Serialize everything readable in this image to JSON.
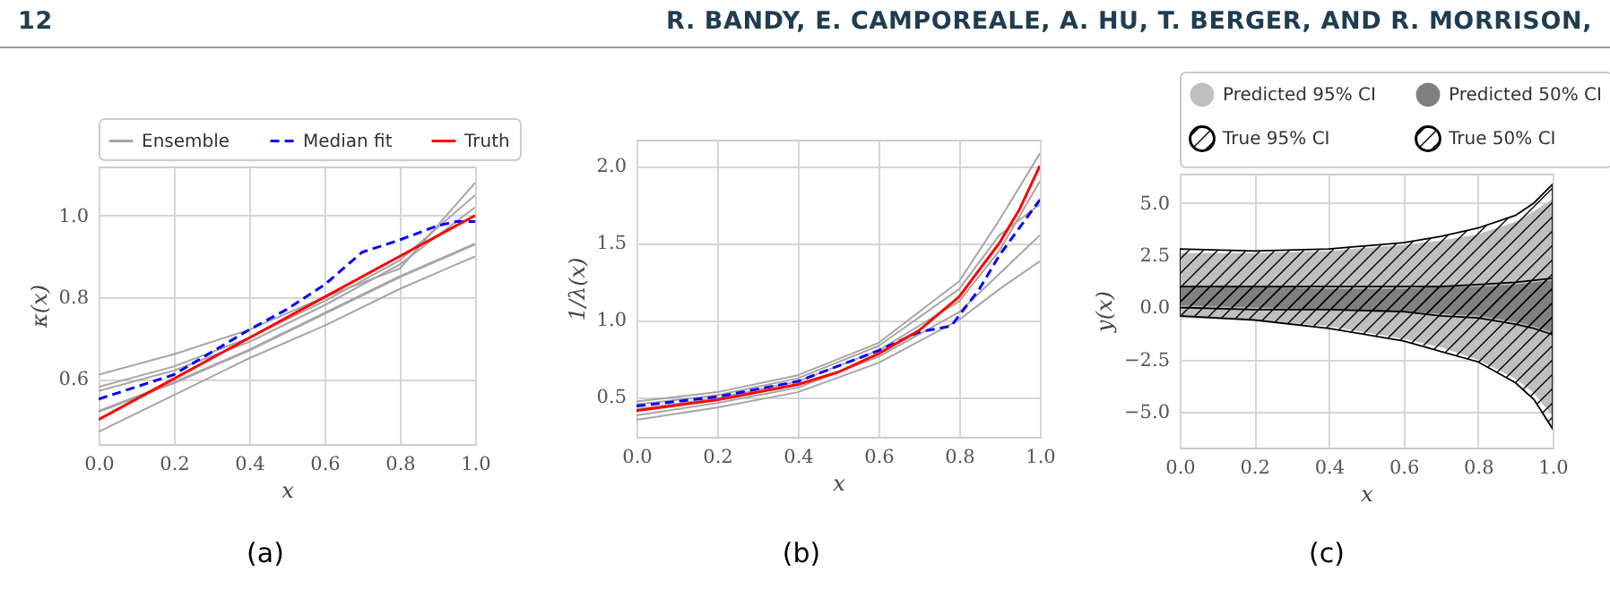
{
  "chart_data": [
    {
      "type": "line",
      "xlabel": "x",
      "ylabel": "κ(x)",
      "annotations": [
        "12",
        "R. BANDY, E. CAMPOREALE, A. HU, T. BERGER, AND R. MORRISON,",
        "(a)"
      ],
      "x": [
        0,
        0.2,
        0.4,
        0.6,
        0.8,
        1.0
      ],
      "series": [
        {
          "color": "#a6a6a6",
          "values": [
            0.61,
            0.66,
            0.72,
            0.8,
            0.87,
            1.08
          ]
        },
        {
          "color": "#a6a6a6",
          "values": [
            0.47,
            0.56,
            0.65,
            0.73,
            0.82,
            0.9
          ]
        },
        {
          "color": "#a6a6a6",
          "values": [
            0.58,
            0.63,
            0.7,
            0.79,
            0.89,
            1.05
          ]
        },
        {
          "color": "#a6a6a6",
          "values": [
            0.57,
            0.62,
            0.69,
            0.78,
            0.88,
            1.02
          ]
        },
        {
          "name": "Ensemble",
          "color": "#a6a6a6",
          "values": [
            0.52,
            0.59,
            0.67,
            0.76,
            0.85,
            0.93
          ]
        },
        {
          "name": "Median fit",
          "color": "#0000ff",
          "line_style": "dashed",
          "x": [
            0,
            0.2,
            0.4,
            0.5,
            0.6,
            0.65,
            0.7,
            0.8,
            0.9,
            0.95,
            1.0
          ],
          "values": [
            0.55,
            0.61,
            0.72,
            0.77,
            0.83,
            0.87,
            0.91,
            0.94,
            0.975,
            0.985,
            0.985
          ]
        },
        {
          "name": "Truth",
          "color": "#ff0000",
          "line_style": "solid",
          "values": [
            0.5,
            0.6,
            0.7,
            0.8,
            0.9,
            1.0
          ]
        }
      ],
      "xlim": [
        0,
        1
      ],
      "xticks": [
        {
          "value": 0,
          "label": "0.0"
        },
        {
          "value": 0.2,
          "label": "0.2"
        },
        {
          "value": 0.4,
          "label": "0.4"
        },
        {
          "value": 0.6,
          "label": "0.6"
        },
        {
          "value": 0.8,
          "label": "0.8"
        },
        {
          "value": 1,
          "label": "1.0"
        }
      ],
      "ylim": [
        0.44,
        1.12
      ],
      "yticks": [
        {
          "value": 0.6,
          "label": "0.6"
        },
        {
          "value": 0.8,
          "label": "0.8"
        },
        {
          "value": 1,
          "label": "1.0"
        }
      ],
      "grid": true,
      "legend": "top"
    },
    {
      "type": "line",
      "xlabel": "x",
      "ylabel": "1/λ(x)",
      "annotations": [
        "(b)"
      ],
      "x": [
        0,
        0.2,
        0.4,
        0.6,
        0.8,
        0.9,
        1.0
      ],
      "series": [
        {
          "color": "#a6a6a6",
          "values": [
            0.47,
            0.53,
            0.64,
            0.85,
            1.25,
            1.65,
            2.08
          ]
        },
        {
          "color": "#a6a6a6",
          "values": [
            0.35,
            0.43,
            0.53,
            0.72,
            1.0,
            1.2,
            1.38
          ]
        },
        {
          "color": "#a6a6a6",
          "values": [
            0.42,
            0.49,
            0.6,
            0.8,
            1.12,
            1.45,
            1.9
          ]
        },
        {
          "color": "#a6a6a6",
          "values": [
            0.38,
            0.46,
            0.56,
            0.76,
            1.05,
            1.3,
            1.55
          ]
        },
        {
          "color": "#a6a6a6",
          "values": [
            0.45,
            0.51,
            0.62,
            0.83,
            1.2,
            1.55,
            1.75
          ]
        },
        {
          "color": "#0000ff",
          "line_style": "dashed",
          "x": [
            0,
            0.2,
            0.4,
            0.6,
            0.7,
            0.78,
            0.85,
            0.9,
            0.95,
            1.0
          ],
          "values": [
            0.44,
            0.5,
            0.6,
            0.8,
            0.92,
            0.96,
            1.2,
            1.42,
            1.6,
            1.78
          ]
        },
        {
          "color": "#ff0000",
          "line_style": "solid",
          "x": [
            0,
            0.2,
            0.4,
            0.5,
            0.6,
            0.7,
            0.8,
            0.9,
            0.95,
            1.0
          ],
          "values": [
            0.41,
            0.48,
            0.58,
            0.66,
            0.78,
            0.93,
            1.15,
            1.5,
            1.72,
            2.0
          ]
        }
      ],
      "xlim": [
        0,
        1
      ],
      "xticks": [
        {
          "value": 0,
          "label": "0.0"
        },
        {
          "value": 0.2,
          "label": "0.2"
        },
        {
          "value": 0.4,
          "label": "0.4"
        },
        {
          "value": 0.6,
          "label": "0.6"
        },
        {
          "value": 0.8,
          "label": "0.8"
        },
        {
          "value": 1,
          "label": "1.0"
        }
      ],
      "ylim": [
        0.24,
        2.17
      ],
      "yticks": [
        {
          "value": 0.5,
          "label": "0.5"
        },
        {
          "value": 1,
          "label": "1.0"
        },
        {
          "value": 1.5,
          "label": "1.5"
        },
        {
          "value": 2,
          "label": "2.0"
        }
      ],
      "grid": true
    },
    {
      "type": "area",
      "xlabel": "x",
      "ylabel": "y(x)",
      "annotations": [
        "(c)"
      ],
      "x": [
        0,
        0.2,
        0.4,
        0.6,
        0.7,
        0.8,
        0.9,
        0.95,
        1.0
      ],
      "series": [
        {
          "name": "Predicted 95% CI",
          "color": "#bfbfbf",
          "values": [
            null,
            null,
            null,
            null,
            null,
            null,
            null,
            null,
            null
          ],
          "lower": [
            -0.5,
            -0.6,
            -0.9,
            -1.5,
            -1.9,
            -2.5,
            -3.4,
            -4.1,
            -5.2
          ],
          "upper": [
            2.6,
            2.6,
            2.7,
            3.0,
            3.2,
            3.5,
            4.1,
            4.6,
            5.2
          ]
        },
        {
          "name": "Predicted 50% CI",
          "color": "#808080",
          "values": [
            null,
            null,
            null,
            null,
            null,
            null,
            null,
            null,
            null
          ],
          "lower": [
            0.1,
            0,
            -0.1,
            -0.2,
            -0.3,
            -0.4,
            -0.7,
            -0.9,
            -1.2
          ],
          "upper": [
            1.0,
            1.0,
            0.9,
            0.9,
            1.0,
            1.0,
            1.1,
            1.2,
            1.3
          ]
        },
        {
          "name": "True 95% CI",
          "color": "#000000",
          "line_style": "solid",
          "values": [
            null,
            null,
            null,
            null,
            null,
            null,
            null,
            null,
            null
          ],
          "lower": [
            -0.4,
            -0.6,
            -1.0,
            -1.6,
            -2.1,
            -2.6,
            -3.6,
            -4.4,
            -5.8
          ],
          "upper": [
            2.8,
            2.7,
            2.8,
            3.1,
            3.4,
            3.8,
            4.4,
            5.0,
            5.9
          ]
        },
        {
          "name": "True 50% CI",
          "color": "#000000",
          "line_style": "solid",
          "values": [
            null,
            null,
            null,
            null,
            null,
            null,
            null,
            null,
            null
          ],
          "lower": [
            0.0,
            -0.1,
            -0.1,
            -0.2,
            -0.4,
            -0.5,
            -0.8,
            -1.0,
            -1.3
          ],
          "upper": [
            1.0,
            1.0,
            1.0,
            1.0,
            1.0,
            1.1,
            1.2,
            1.3,
            1.4
          ]
        }
      ],
      "xlim": [
        0,
        1
      ],
      "xticks": [
        {
          "value": 0,
          "label": "0.0"
        },
        {
          "value": 0.2,
          "label": "0.2"
        },
        {
          "value": 0.4,
          "label": "0.4"
        },
        {
          "value": 0.6,
          "label": "0.6"
        },
        {
          "value": 0.8,
          "label": "0.8"
        },
        {
          "value": 1,
          "label": "1.0"
        }
      ],
      "ylim": [
        -6.7,
        6.4
      ],
      "yticks": [
        {
          "value": -5,
          "label": "−5.0"
        },
        {
          "value": -2.5,
          "label": "−2.5"
        },
        {
          "value": 0,
          "label": "0.0"
        },
        {
          "value": 2.5,
          "label": "2.5"
        },
        {
          "value": 5,
          "label": "5.0"
        }
      ],
      "grid": true,
      "legend": "top"
    }
  ]
}
